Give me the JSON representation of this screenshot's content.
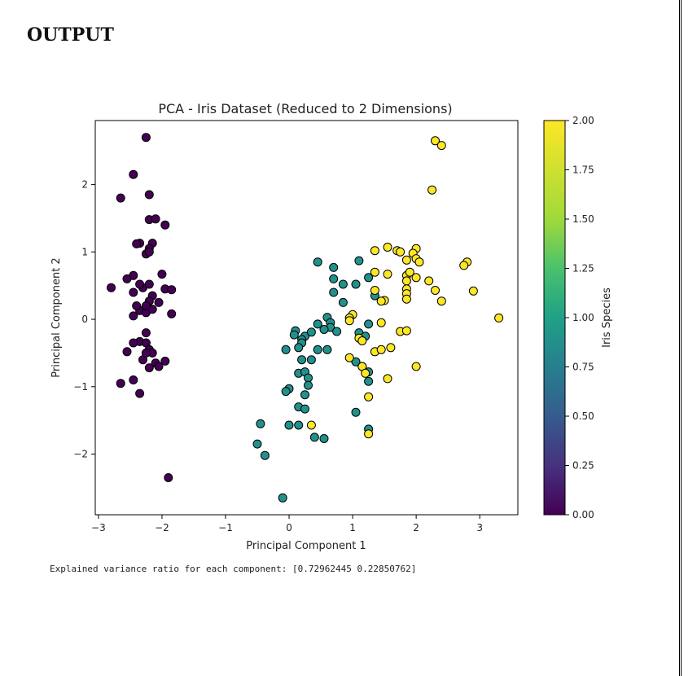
{
  "page": {
    "heading": "OUTPUT"
  },
  "console": {
    "text": "Explained variance ratio for each component: [0.72962445 0.22850762]"
  },
  "chart_data": {
    "type": "scatter",
    "title": "PCA - Iris Dataset (Reduced to 2 Dimensions)",
    "xlabel": "Principal Component 1",
    "ylabel": "Principal Component 2",
    "xlim": [
      -3.05,
      3.6
    ],
    "ylim": [
      -2.9,
      2.95
    ],
    "xticks": [
      -3,
      -2,
      -1,
      0,
      1,
      2,
      3
    ],
    "xtick_labels": [
      "−3",
      "−2",
      "−1",
      "0",
      "1",
      "2",
      "3"
    ],
    "yticks": [
      -2,
      -1,
      0,
      1,
      2
    ],
    "ytick_labels": [
      "−2",
      "−1",
      "0",
      "1",
      "2"
    ],
    "grid": false,
    "colormap": "viridis",
    "colorbar": {
      "label": "Iris Species",
      "range": [
        0,
        2
      ],
      "ticks": [
        0.0,
        0.25,
        0.5,
        0.75,
        1.0,
        1.25,
        1.5,
        1.75,
        2.0
      ],
      "tick_labels": [
        "0.00",
        "0.25",
        "0.50",
        "0.75",
        "1.00",
        "1.25",
        "1.50",
        "1.75",
        "2.00"
      ]
    },
    "colors": {
      "class_0": "#440154",
      "class_1": "#21918c",
      "class_2": "#fde725"
    },
    "series": [
      {
        "class_value": 0,
        "points": [
          [
            -2.25,
            2.7
          ],
          [
            -2.45,
            2.15
          ],
          [
            -2.65,
            1.8
          ],
          [
            -2.2,
            1.85
          ],
          [
            -2.2,
            1.48
          ],
          [
            -2.1,
            1.49
          ],
          [
            -1.95,
            1.4
          ],
          [
            -2.35,
            1.13
          ],
          [
            -2.4,
            1.12
          ],
          [
            -2.15,
            1.13
          ],
          [
            -2.2,
            1.05
          ],
          [
            -2.25,
            0.97
          ],
          [
            -2.2,
            1.0
          ],
          [
            -2.45,
            0.65
          ],
          [
            -2.55,
            0.6
          ],
          [
            -2.0,
            0.67
          ],
          [
            -2.8,
            0.47
          ],
          [
            -2.3,
            0.47
          ],
          [
            -2.2,
            0.52
          ],
          [
            -1.95,
            0.45
          ],
          [
            -1.85,
            0.44
          ],
          [
            -2.35,
            0.52
          ],
          [
            -2.15,
            0.35
          ],
          [
            -2.45,
            0.4
          ],
          [
            -2.05,
            0.25
          ],
          [
            -2.2,
            0.27
          ],
          [
            -2.35,
            0.13
          ],
          [
            -2.25,
            0.1
          ],
          [
            -2.15,
            0.15
          ],
          [
            -2.45,
            0.05
          ],
          [
            -1.85,
            0.08
          ],
          [
            -2.25,
            0.2
          ],
          [
            -2.35,
            -0.33
          ],
          [
            -2.25,
            -0.2
          ],
          [
            -2.45,
            -0.35
          ],
          [
            -2.25,
            -0.35
          ],
          [
            -2.2,
            -0.45
          ],
          [
            -2.55,
            -0.48
          ],
          [
            -2.15,
            -0.5
          ],
          [
            -2.3,
            -0.6
          ],
          [
            -2.1,
            -0.65
          ],
          [
            -1.95,
            -0.62
          ],
          [
            -2.2,
            -0.72
          ],
          [
            -2.05,
            -0.7
          ],
          [
            -2.65,
            -0.95
          ],
          [
            -2.45,
            -0.9
          ],
          [
            -2.35,
            -1.1
          ],
          [
            -1.9,
            -2.35
          ],
          [
            -2.25,
            -0.5
          ],
          [
            -2.4,
            0.2
          ]
        ]
      },
      {
        "class_value": 1,
        "points": [
          [
            0.45,
            0.85
          ],
          [
            0.7,
            0.77
          ],
          [
            1.1,
            0.87
          ],
          [
            0.7,
            0.6
          ],
          [
            0.85,
            0.52
          ],
          [
            1.05,
            0.52
          ],
          [
            0.7,
            0.4
          ],
          [
            1.25,
            0.62
          ],
          [
            1.35,
            0.35
          ],
          [
            0.85,
            0.25
          ],
          [
            0.6,
            0.03
          ],
          [
            0.65,
            -0.05
          ],
          [
            0.65,
            -0.12
          ],
          [
            0.45,
            -0.07
          ],
          [
            0.55,
            -0.15
          ],
          [
            0.75,
            -0.18
          ],
          [
            0.1,
            -0.17
          ],
          [
            0.08,
            -0.23
          ],
          [
            0.25,
            -0.25
          ],
          [
            0.35,
            -0.19
          ],
          [
            0.2,
            -0.3
          ],
          [
            0.2,
            -0.35
          ],
          [
            0.45,
            -0.45
          ],
          [
            0.6,
            -0.45
          ],
          [
            1.1,
            -0.2
          ],
          [
            1.2,
            -0.25
          ],
          [
            1.25,
            -0.07
          ],
          [
            -0.05,
            -0.45
          ],
          [
            0.15,
            -0.42
          ],
          [
            0.2,
            -0.6
          ],
          [
            0.35,
            -0.6
          ],
          [
            1.05,
            -0.63
          ],
          [
            1.25,
            -0.78
          ],
          [
            1.25,
            -0.92
          ],
          [
            0.15,
            -0.8
          ],
          [
            0.25,
            -0.78
          ],
          [
            0.3,
            -0.87
          ],
          [
            0.3,
            -0.98
          ],
          [
            0.25,
            -1.12
          ],
          [
            0.0,
            -1.03
          ],
          [
            -0.05,
            -1.07
          ],
          [
            0.15,
            -1.3
          ],
          [
            0.25,
            -1.33
          ],
          [
            0.0,
            -1.57
          ],
          [
            0.15,
            -1.57
          ],
          [
            -0.45,
            -1.55
          ],
          [
            -0.5,
            -1.85
          ],
          [
            -0.38,
            -2.02
          ],
          [
            0.4,
            -1.75
          ],
          [
            0.55,
            -1.77
          ],
          [
            -0.1,
            -2.65
          ],
          [
            1.05,
            -1.38
          ],
          [
            1.25,
            -1.63
          ],
          [
            1.15,
            -0.7
          ]
        ]
      },
      {
        "class_value": 2,
        "points": [
          [
            2.3,
            2.65
          ],
          [
            2.4,
            2.58
          ],
          [
            2.25,
            1.92
          ],
          [
            1.55,
            1.07
          ],
          [
            1.7,
            1.02
          ],
          [
            1.35,
            1.02
          ],
          [
            2.0,
            1.05
          ],
          [
            1.95,
            0.98
          ],
          [
            2.0,
            0.9
          ],
          [
            2.05,
            0.85
          ],
          [
            1.85,
            0.88
          ],
          [
            2.8,
            0.85
          ],
          [
            2.75,
            0.8
          ],
          [
            1.35,
            0.7
          ],
          [
            1.55,
            0.67
          ],
          [
            1.85,
            0.65
          ],
          [
            1.9,
            0.7
          ],
          [
            2.0,
            0.62
          ],
          [
            1.85,
            0.57
          ],
          [
            2.2,
            0.57
          ],
          [
            1.85,
            0.45
          ],
          [
            1.85,
            0.38
          ],
          [
            1.85,
            0.3
          ],
          [
            1.35,
            0.43
          ],
          [
            1.5,
            0.28
          ],
          [
            1.45,
            0.27
          ],
          [
            2.3,
            0.43
          ],
          [
            2.9,
            0.42
          ],
          [
            2.4,
            0.27
          ],
          [
            3.3,
            0.02
          ],
          [
            1.0,
            0.07
          ],
          [
            0.95,
            0.02
          ],
          [
            0.95,
            -0.02
          ],
          [
            1.45,
            -0.05
          ],
          [
            1.1,
            -0.28
          ],
          [
            1.15,
            -0.32
          ],
          [
            1.75,
            -0.18
          ],
          [
            1.85,
            -0.17
          ],
          [
            1.35,
            -0.48
          ],
          [
            1.45,
            -0.45
          ],
          [
            1.6,
            -0.42
          ],
          [
            0.95,
            -0.57
          ],
          [
            1.15,
            -0.7
          ],
          [
            1.2,
            -0.8
          ],
          [
            2.0,
            -0.7
          ],
          [
            1.55,
            -0.88
          ],
          [
            1.25,
            -1.15
          ],
          [
            0.35,
            -1.57
          ],
          [
            1.25,
            -1.7
          ],
          [
            1.75,
            1.0
          ]
        ]
      }
    ]
  }
}
